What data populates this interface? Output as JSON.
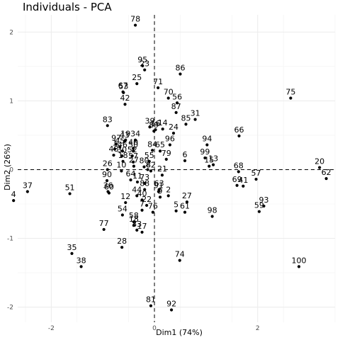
{
  "chart_data": {
    "type": "scatter",
    "title": "Individuals - PCA",
    "xlabel": "Dim1 (74%)",
    "ylabel": "Dim2 (26%)",
    "xlim": [
      -2.65,
      3.5
    ],
    "ylim": [
      -2.22,
      2.25
    ],
    "xticks": [
      -2,
      0,
      2
    ],
    "yticks": [
      -2,
      -1,
      0,
      1,
      2
    ],
    "grid": true,
    "reference_lines": {
      "x": 0,
      "y": 0,
      "style": "dashed"
    },
    "point_color": "#000000",
    "points": [
      {
        "label": "78",
        "x": -0.37,
        "y": 2.1
      },
      {
        "label": "95",
        "x": -0.23,
        "y": 1.51
      },
      {
        "label": "23",
        "x": -0.19,
        "y": 1.45
      },
      {
        "label": "86",
        "x": 0.5,
        "y": 1.39
      },
      {
        "label": "25",
        "x": -0.34,
        "y": 1.25
      },
      {
        "label": "71",
        "x": 0.07,
        "y": 1.19
      },
      {
        "label": "67",
        "x": -0.61,
        "y": 1.13
      },
      {
        "label": "53",
        "x": -0.6,
        "y": 1.12
      },
      {
        "label": "42",
        "x": -0.57,
        "y": 0.95
      },
      {
        "label": "75",
        "x": 2.64,
        "y": 1.04
      },
      {
        "label": "70",
        "x": 0.27,
        "y": 1.04
      },
      {
        "label": "56",
        "x": 0.44,
        "y": 0.97
      },
      {
        "label": "87",
        "x": 0.42,
        "y": 0.83
      },
      {
        "label": "83",
        "x": -0.91,
        "y": 0.64
      },
      {
        "label": "85",
        "x": 0.61,
        "y": 0.66
      },
      {
        "label": "31",
        "x": 0.79,
        "y": 0.73
      },
      {
        "label": "66",
        "x": 1.64,
        "y": 0.49
      },
      {
        "label": "39",
        "x": -0.09,
        "y": 0.62
      },
      {
        "label": "16",
        "x": 0.02,
        "y": 0.58
      },
      {
        "label": "89",
        "x": -0.01,
        "y": 0.56
      },
      {
        "label": "14",
        "x": 0.16,
        "y": 0.59
      },
      {
        "label": "24",
        "x": 0.37,
        "y": 0.53
      },
      {
        "label": "97",
        "x": -0.74,
        "y": 0.37
      },
      {
        "label": "19",
        "x": -0.56,
        "y": 0.43
      },
      {
        "label": "43",
        "x": -0.58,
        "y": 0.41
      },
      {
        "label": "45",
        "x": -0.67,
        "y": 0.33
      },
      {
        "label": "34",
        "x": -0.37,
        "y": 0.43
      },
      {
        "label": "96",
        "x": 0.3,
        "y": 0.36
      },
      {
        "label": "94",
        "x": 1.02,
        "y": 0.36
      },
      {
        "label": "1",
        "x": -0.77,
        "y": 0.3
      },
      {
        "label": "46",
        "x": -0.62,
        "y": 0.27
      },
      {
        "label": "40",
        "x": -0.41,
        "y": 0.31
      },
      {
        "label": "84",
        "x": -0.04,
        "y": 0.28
      },
      {
        "label": "65",
        "x": 0.11,
        "y": 0.27
      },
      {
        "label": "48",
        "x": -0.79,
        "y": 0.21
      },
      {
        "label": "30",
        "x": -0.63,
        "y": 0.2
      },
      {
        "label": "50",
        "x": -0.41,
        "y": 0.27
      },
      {
        "label": "52",
        "x": -0.43,
        "y": 0.2
      },
      {
        "label": "79",
        "x": 0.23,
        "y": 0.15
      },
      {
        "label": "6",
        "x": 0.59,
        "y": 0.13
      },
      {
        "label": "99",
        "x": 0.98,
        "y": 0.17
      },
      {
        "label": "18",
        "x": -0.61,
        "y": 0.12
      },
      {
        "label": "57",
        "x": -0.41,
        "y": 0.11
      },
      {
        "label": "55",
        "x": -0.1,
        "y": 0.12
      },
      {
        "label": "27",
        "x": -0.4,
        "y": 0.05
      },
      {
        "label": "13",
        "x": 1.14,
        "y": 0.07
      },
      {
        "label": "15",
        "x": 1.06,
        "y": 0.05
      },
      {
        "label": "68",
        "x": 1.63,
        "y": -0.03
      },
      {
        "label": "20",
        "x": 3.2,
        "y": 0.03
      },
      {
        "label": "62",
        "x": 3.33,
        "y": -0.13
      },
      {
        "label": "26",
        "x": -0.91,
        "y": 0.0
      },
      {
        "label": "10",
        "x": -0.64,
        "y": -0.02
      },
      {
        "label": "80",
        "x": -0.2,
        "y": 0.04
      },
      {
        "label": "2",
        "x": -0.13,
        "y": 0.0
      },
      {
        "label": "82",
        "x": -0.07,
        "y": -0.02
      },
      {
        "label": "21",
        "x": 0.15,
        "y": -0.08
      },
      {
        "label": "57",
        "x": 1.97,
        "y": -0.14
      },
      {
        "label": "69",
        "x": 1.6,
        "y": -0.23
      },
      {
        "label": "41",
        "x": 1.72,
        "y": -0.24
      },
      {
        "label": "37",
        "x": -2.46,
        "y": -0.32
      },
      {
        "label": "51",
        "x": -1.64,
        "y": -0.35
      },
      {
        "label": "90",
        "x": -0.92,
        "y": -0.16
      },
      {
        "label": "64",
        "x": -0.46,
        "y": -0.15
      },
      {
        "label": "11",
        "x": -0.33,
        "y": -0.18
      },
      {
        "label": "73",
        "x": -0.19,
        "y": -0.2
      },
      {
        "label": "36",
        "x": -0.9,
        "y": -0.32
      },
      {
        "label": "60",
        "x": -0.88,
        "y": -0.34
      },
      {
        "label": "88",
        "x": -0.19,
        "y": -0.29
      },
      {
        "label": "4",
        "x": -2.73,
        "y": -0.45
      },
      {
        "label": "44",
        "x": -0.34,
        "y": -0.38
      },
      {
        "label": "91",
        "x": 0.08,
        "y": -0.32
      },
      {
        "label": "9",
        "x": 0.11,
        "y": -0.4
      },
      {
        "label": "2",
        "x": 0.27,
        "y": -0.38
      },
      {
        "label": "27",
        "x": 0.63,
        "y": -0.47
      },
      {
        "label": "12",
        "x": -0.56,
        "y": -0.48
      },
      {
        "label": "40",
        "x": -0.24,
        "y": -0.44
      },
      {
        "label": "63",
        "x": 0.09,
        "y": -0.29
      },
      {
        "label": "5",
        "x": 0.42,
        "y": -0.6
      },
      {
        "label": "61",
        "x": 0.59,
        "y": -0.62
      },
      {
        "label": "22",
        "x": -0.15,
        "y": -0.52
      },
      {
        "label": "7",
        "x": -0.24,
        "y": -0.59
      },
      {
        "label": "76",
        "x": -0.03,
        "y": -0.62
      },
      {
        "label": "98",
        "x": 1.12,
        "y": -0.68
      },
      {
        "label": "93",
        "x": 2.12,
        "y": -0.53
      },
      {
        "label": "59",
        "x": 2.03,
        "y": -0.61
      },
      {
        "label": "54",
        "x": -0.62,
        "y": -0.66
      },
      {
        "label": "58",
        "x": -0.4,
        "y": -0.76
      },
      {
        "label": "18",
        "x": -0.4,
        "y": -0.81
      },
      {
        "label": "33",
        "x": -0.34,
        "y": -0.88
      },
      {
        "label": "17",
        "x": -0.24,
        "y": -0.91
      },
      {
        "label": "77",
        "x": -0.98,
        "y": -0.87
      },
      {
        "label": "28",
        "x": -0.63,
        "y": -1.13
      },
      {
        "label": "35",
        "x": -1.6,
        "y": -1.22
      },
      {
        "label": "74",
        "x": 0.49,
        "y": -1.32
      },
      {
        "label": "38",
        "x": -1.42,
        "y": -1.41
      },
      {
        "label": "100",
        "x": 2.8,
        "y": -1.41
      },
      {
        "label": "81",
        "x": -0.07,
        "y": -1.98
      },
      {
        "label": "92",
        "x": 0.33,
        "y": -2.04
      }
    ]
  }
}
